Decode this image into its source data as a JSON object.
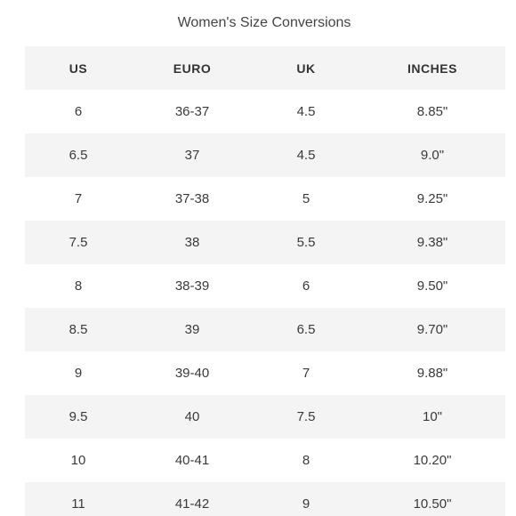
{
  "title": "Women's Size Conversions",
  "headers": [
    "US",
    "EURO",
    "UK",
    "INCHES"
  ],
  "rows": [
    [
      "6",
      "36-37",
      "4.5",
      "8.85\""
    ],
    [
      "6.5",
      "37",
      "4.5",
      "9.0\""
    ],
    [
      "7",
      "37-38",
      "5",
      "9.25\""
    ],
    [
      "7.5",
      "38",
      "5.5",
      "9.38\""
    ],
    [
      "8",
      "38-39",
      "6",
      "9.50\""
    ],
    [
      "8.5",
      "39",
      "6.5",
      "9.70\""
    ],
    [
      "9",
      "39-40",
      "7",
      "9.88\""
    ],
    [
      "9.5",
      "40",
      "7.5",
      "10\""
    ],
    [
      "10",
      "40-41",
      "8",
      "10.20\""
    ],
    [
      "11",
      "41-42",
      "9",
      "10.50\""
    ]
  ]
}
